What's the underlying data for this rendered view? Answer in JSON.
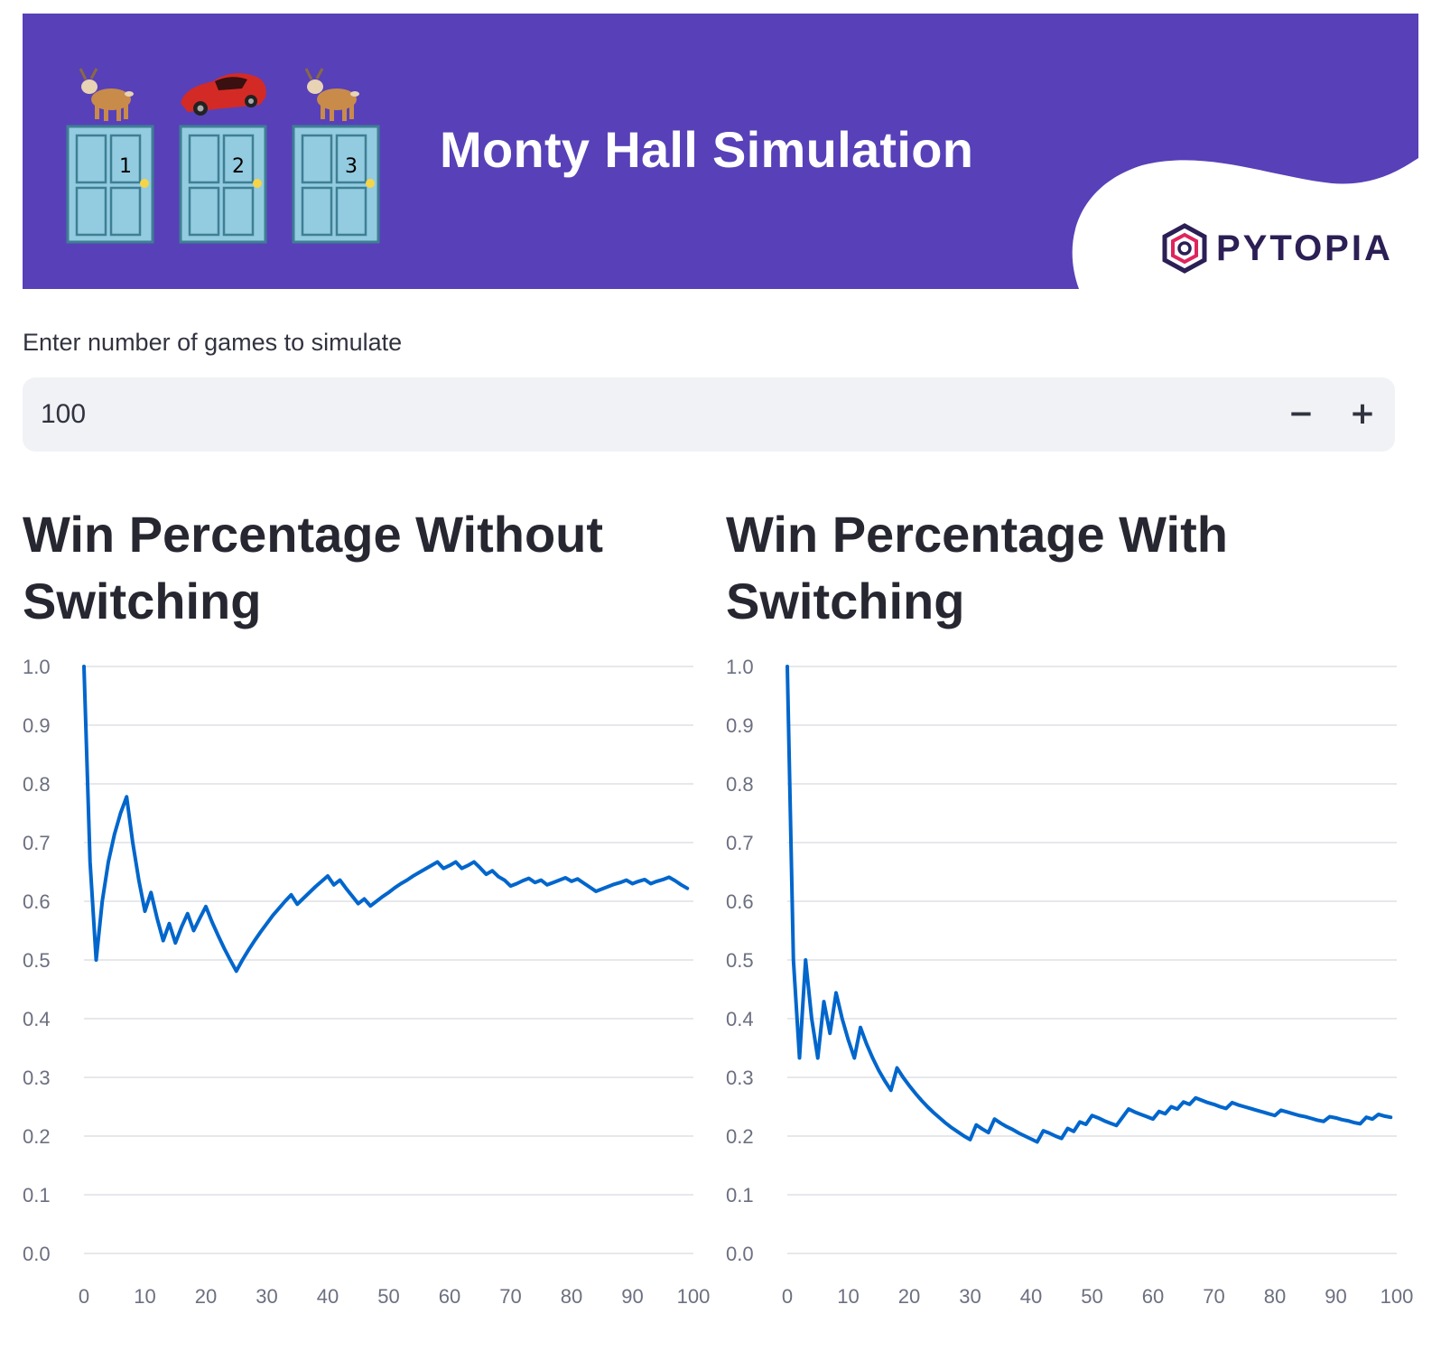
{
  "header": {
    "title": "Monty Hall Simulation",
    "brand": "PYTOPIA",
    "doors": [
      {
        "number": "1",
        "prize": "goat"
      },
      {
        "number": "2",
        "prize": "car"
      },
      {
        "number": "3",
        "prize": "goat"
      }
    ],
    "colors": {
      "banner": "#5840B8",
      "door": "#93CBE0",
      "knob": "#F5D547"
    }
  },
  "input": {
    "label": "Enter number of games to simulate",
    "value": "100",
    "minus_label": "−",
    "plus_label": "+"
  },
  "charts_meta": {
    "without_title": "Win Percentage Without Switching",
    "with_title": "Win Percentage With Switching",
    "line_color": "#0066CC"
  },
  "chart_data": [
    {
      "type": "line",
      "title": "Win Percentage Without Switching",
      "xlim": [
        0,
        100
      ],
      "ylim": [
        0,
        1
      ],
      "grid": true,
      "x_ticks": [
        0,
        10,
        20,
        30,
        40,
        50,
        60,
        70,
        80,
        90,
        100
      ],
      "y_ticks": [
        0.0,
        0.1,
        0.2,
        0.3,
        0.4,
        0.5,
        0.6,
        0.7,
        0.8,
        0.9,
        1.0
      ],
      "x": [
        0,
        1,
        2,
        3,
        4,
        5,
        6,
        7,
        8,
        9,
        10,
        11,
        12,
        13,
        14,
        15,
        16,
        17,
        18,
        19,
        20,
        21,
        22,
        23,
        24,
        25,
        26,
        27,
        28,
        29,
        30,
        31,
        32,
        33,
        34,
        35,
        36,
        37,
        38,
        39,
        40,
        41,
        42,
        43,
        44,
        45,
        46,
        47,
        48,
        49,
        50,
        51,
        52,
        53,
        54,
        55,
        56,
        57,
        58,
        59,
        60,
        61,
        62,
        63,
        64,
        65,
        66,
        67,
        68,
        69,
        70,
        71,
        72,
        73,
        74,
        75,
        76,
        77,
        78,
        79,
        80,
        81,
        82,
        83,
        84,
        85,
        86,
        87,
        88,
        89,
        90,
        91,
        92,
        93,
        94,
        95,
        96,
        97,
        98,
        99
      ],
      "y": [
        1.0,
        0.667,
        0.5,
        0.6,
        0.667,
        0.714,
        0.75,
        0.778,
        0.7,
        0.636,
        0.583,
        0.615,
        0.571,
        0.533,
        0.562,
        0.529,
        0.556,
        0.579,
        0.55,
        0.571,
        0.591,
        0.565,
        0.542,
        0.52,
        0.5,
        0.481,
        0.5,
        0.517,
        0.533,
        0.548,
        0.562,
        0.576,
        0.588,
        0.6,
        0.611,
        0.595,
        0.605,
        0.615,
        0.625,
        0.634,
        0.643,
        0.628,
        0.636,
        0.622,
        0.609,
        0.596,
        0.604,
        0.592,
        0.6,
        0.608,
        0.615,
        0.623,
        0.63,
        0.636,
        0.643,
        0.649,
        0.655,
        0.661,
        0.667,
        0.656,
        0.661,
        0.667,
        0.656,
        0.661,
        0.667,
        0.657,
        0.646,
        0.652,
        0.642,
        0.636,
        0.626,
        0.63,
        0.635,
        0.639,
        0.632,
        0.636,
        0.628,
        0.632,
        0.636,
        0.64,
        0.634,
        0.638,
        0.631,
        0.624,
        0.617,
        0.621,
        0.625,
        0.629,
        0.632,
        0.636,
        0.63,
        0.634,
        0.637,
        0.63,
        0.634,
        0.637,
        0.641,
        0.635,
        0.628,
        0.622
      ]
    },
    {
      "type": "line",
      "title": "Win Percentage With Switching",
      "xlim": [
        0,
        100
      ],
      "ylim": [
        0,
        1
      ],
      "grid": true,
      "x_ticks": [
        0,
        10,
        20,
        30,
        40,
        50,
        60,
        70,
        80,
        90,
        100
      ],
      "y_ticks": [
        0.0,
        0.1,
        0.2,
        0.3,
        0.4,
        0.5,
        0.6,
        0.7,
        0.8,
        0.9,
        1.0
      ],
      "x": [
        0,
        1,
        2,
        3,
        4,
        5,
        6,
        7,
        8,
        9,
        10,
        11,
        12,
        13,
        14,
        15,
        16,
        17,
        18,
        19,
        20,
        21,
        22,
        23,
        24,
        25,
        26,
        27,
        28,
        29,
        30,
        31,
        32,
        33,
        34,
        35,
        36,
        37,
        38,
        39,
        40,
        41,
        42,
        43,
        44,
        45,
        46,
        47,
        48,
        49,
        50,
        51,
        52,
        53,
        54,
        55,
        56,
        57,
        58,
        59,
        60,
        61,
        62,
        63,
        64,
        65,
        66,
        67,
        68,
        69,
        70,
        71,
        72,
        73,
        74,
        75,
        76,
        77,
        78,
        79,
        80,
        81,
        82,
        83,
        84,
        85,
        86,
        87,
        88,
        89,
        90,
        91,
        92,
        93,
        94,
        95,
        96,
        97,
        98,
        99
      ],
      "y": [
        1.0,
        0.5,
        0.333,
        0.5,
        0.4,
        0.333,
        0.429,
        0.375,
        0.444,
        0.4,
        0.364,
        0.333,
        0.385,
        0.357,
        0.333,
        0.312,
        0.294,
        0.278,
        0.316,
        0.3,
        0.286,
        0.273,
        0.261,
        0.25,
        0.24,
        0.231,
        0.222,
        0.214,
        0.207,
        0.2,
        0.194,
        0.219,
        0.212,
        0.206,
        0.229,
        0.222,
        0.216,
        0.211,
        0.205,
        0.2,
        0.195,
        0.19,
        0.209,
        0.205,
        0.2,
        0.196,
        0.213,
        0.208,
        0.224,
        0.22,
        0.235,
        0.231,
        0.226,
        0.222,
        0.218,
        0.232,
        0.246,
        0.241,
        0.237,
        0.233,
        0.229,
        0.242,
        0.238,
        0.25,
        0.246,
        0.258,
        0.254,
        0.265,
        0.261,
        0.257,
        0.254,
        0.25,
        0.247,
        0.257,
        0.253,
        0.25,
        0.247,
        0.244,
        0.241,
        0.238,
        0.235,
        0.244,
        0.241,
        0.238,
        0.235,
        0.233,
        0.23,
        0.227,
        0.225,
        0.233,
        0.231,
        0.228,
        0.226,
        0.223,
        0.221,
        0.232,
        0.229,
        0.237,
        0.234,
        0.232
      ]
    }
  ]
}
